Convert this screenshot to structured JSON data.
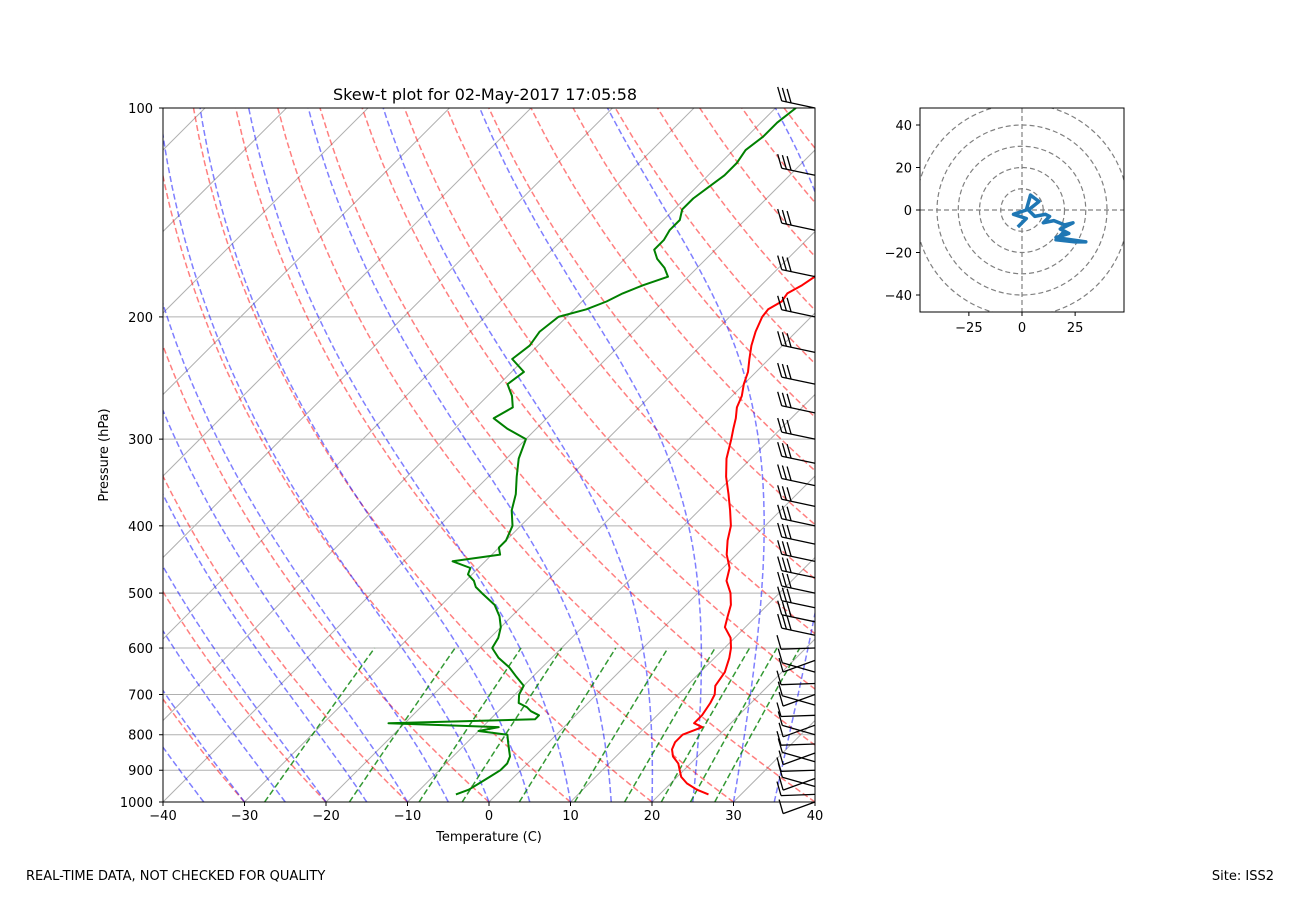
{
  "footer": {
    "left": "REAL-TIME DATA, NOT CHECKED FOR QUALITY",
    "right": "Site: ISS2"
  },
  "chart_data": [
    {
      "type": "line",
      "name": "skew-t",
      "title": "Skew-t plot for 02-May-2017 17:05:58",
      "xlabel": "Temperature (C)",
      "ylabel": "Pressure (hPa)",
      "xlim": [
        -40,
        40
      ],
      "ylim": [
        1000,
        100
      ],
      "x_ticks": [
        -40,
        -30,
        -20,
        -10,
        0,
        10,
        20,
        30,
        40
      ],
      "y_ticks": [
        100,
        200,
        300,
        400,
        500,
        600,
        700,
        800,
        900,
        1000
      ],
      "series": [
        {
          "name": "temperature",
          "color": "#ff0000",
          "pressure": [
            975,
            960,
            940,
            920,
            900,
            880,
            860,
            840,
            820,
            800,
            780,
            770,
            750,
            720,
            700,
            680,
            650,
            620,
            600,
            580,
            560,
            540,
            520,
            500,
            480,
            460,
            440,
            420,
            400,
            380,
            360,
            340,
            320,
            300,
            290,
            280,
            270,
            260,
            250,
            240,
            230,
            220,
            210,
            200,
            195,
            190,
            185,
            180,
            175,
            170,
            165,
            160,
            155,
            150,
            145,
            140,
            135,
            130,
            125,
            120,
            115,
            110,
            105,
            100
          ],
          "temp": [
            26.0,
            24.0,
            22.0,
            20.5,
            19.5,
            18.5,
            17.0,
            16.0,
            15.5,
            15.5,
            17.0,
            15.5,
            15.5,
            15.0,
            14.5,
            13.5,
            13.0,
            11.8,
            10.8,
            9.5,
            7.5,
            6.5,
            5.5,
            4.0,
            2.0,
            0.8,
            -1.2,
            -2.8,
            -4.2,
            -6.2,
            -8.4,
            -10.8,
            -13.0,
            -14.8,
            -15.8,
            -16.8,
            -18.0,
            -18.8,
            -20.0,
            -21.0,
            -22.4,
            -23.8,
            -25.0,
            -26.0,
            -26.2,
            -25.5,
            -25.8,
            -25.0,
            -24.5,
            -24.8,
            -24.0,
            -23.5,
            -22.5,
            -21.5,
            -20.5,
            -19.0,
            -17.8,
            -16.5,
            -15.3,
            -14.0,
            -12.5,
            -11.5,
            -11.5,
            -11.5
          ]
        },
        {
          "name": "dewpoint",
          "color": "#008000",
          "pressure": [
            975,
            960,
            940,
            920,
            900,
            880,
            860,
            840,
            820,
            800,
            790,
            780,
            770,
            760,
            750,
            740,
            730,
            720,
            700,
            680,
            660,
            640,
            620,
            610,
            600,
            580,
            560,
            540,
            520,
            500,
            490,
            480,
            470,
            460,
            450,
            440,
            430,
            420,
            400,
            380,
            360,
            340,
            320,
            300,
            290,
            280,
            270,
            260,
            250,
            240,
            230,
            220,
            210,
            200,
            195,
            190,
            185,
            180,
            175,
            170,
            165,
            160,
            155,
            150,
            145,
            140,
            135,
            130,
            125,
            120,
            115,
            110,
            105,
            100
          ],
          "temp": [
            -5.0,
            -4.0,
            -3.5,
            -3.0,
            -2.5,
            -2.5,
            -3.0,
            -4.0,
            -5.0,
            -6.0,
            -10.0,
            -8.0,
            -22.0,
            -4.5,
            -4.5,
            -6.0,
            -7.0,
            -8.5,
            -9.5,
            -10.0,
            -12.0,
            -14.0,
            -16.5,
            -17.5,
            -18.5,
            -19.0,
            -20.0,
            -21.5,
            -23.5,
            -26.5,
            -28.0,
            -29.0,
            -30.5,
            -31.0,
            -34.0,
            -29.0,
            -30.0,
            -30.0,
            -31.0,
            -33.0,
            -34.5,
            -36.5,
            -38.5,
            -40.0,
            -43.5,
            -46.5,
            -45.5,
            -47.0,
            -49.0,
            -48.5,
            -51.5,
            -51.0,
            -51.5,
            -51.0,
            -48.5,
            -47.0,
            -46.0,
            -44.5,
            -42.5,
            -44.0,
            -46.0,
            -47.5,
            -47.5,
            -48.0,
            -48.0,
            -49.0,
            -49.0,
            -48.5,
            -48.0,
            -48.0,
            -48.5,
            -48.0,
            -48.0,
            -47.5
          ]
        }
      ],
      "reference_lines": {
        "dry_adiabats": "red dashed",
        "moist_adiabats": "blue dashed",
        "mixing_ratio_lines": "green dashed",
        "isotherms": "gray solid"
      },
      "wind_barbs": "black barbs along right axis"
    },
    {
      "type": "line",
      "name": "hodograph",
      "xlim": [
        -48,
        48
      ],
      "ylim": [
        -48,
        48
      ],
      "x_ticks": [
        -25,
        0,
        25
      ],
      "y_ticks": [
        -40,
        -20,
        0,
        20,
        40
      ],
      "range_rings": [
        10,
        20,
        30,
        40,
        50
      ],
      "series": [
        {
          "name": "wind",
          "color": "#1f77b4",
          "u": [
            -2,
            2,
            -4,
            2,
            4,
            8,
            3,
            6,
            11,
            13,
            10,
            15,
            20,
            24,
            18,
            22,
            16,
            30,
            25,
            16,
            20
          ],
          "v": [
            -8,
            -4,
            -2,
            0,
            7,
            4,
            0,
            -3,
            -2,
            -3,
            -6,
            -5,
            -7,
            -6,
            -9,
            -11,
            -13,
            -15,
            -15,
            -14,
            -10
          ]
        }
      ]
    }
  ]
}
